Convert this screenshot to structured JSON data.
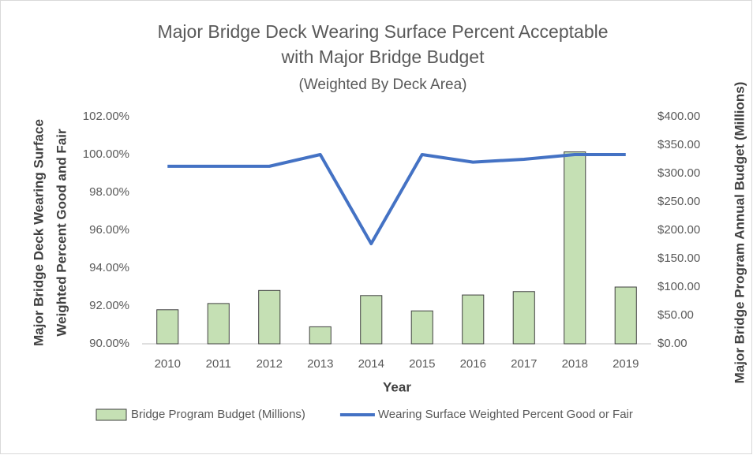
{
  "chart_data": {
    "type": "bar",
    "title": [
      "Major Bridge Deck Wearing Surface Percent Acceptable",
      "with Major Bridge Budget"
    ],
    "subtitle": "(Weighted By Deck Area)",
    "xlabel": "Year",
    "ylabel": [
      "Major Bridge Deck Wearing Surface",
      "Weighted Percent Good and Fair"
    ],
    "y2label": "Major Bridge Program Annual Budget (Millions)",
    "categories": [
      "2010",
      "2011",
      "2012",
      "2013",
      "2014",
      "2015",
      "2016",
      "2017",
      "2018",
      "2019"
    ],
    "series": [
      {
        "name": "Bridge Program Budget (Millions)",
        "type": "bar",
        "axis": "y2",
        "color": "#c5e0b4",
        "values": [
          60,
          71,
          94,
          30,
          85,
          58,
          86,
          92,
          338,
          100
        ]
      },
      {
        "name": "Wearing Surface Weighted Percent Good or Fair",
        "type": "line",
        "axis": "y",
        "color": "#4472c4",
        "values": [
          99.38,
          99.38,
          99.38,
          100.0,
          95.29,
          100.0,
          99.6,
          99.75,
          100.0,
          100.0
        ]
      }
    ],
    "ylim": [
      90,
      102
    ],
    "yticks": [
      {
        "value": 90,
        "label": "90.00%"
      },
      {
        "value": 92,
        "label": "92.00%"
      },
      {
        "value": 94,
        "label": "94.00%"
      },
      {
        "value": 96,
        "label": "96.00%"
      },
      {
        "value": 98,
        "label": "98.00%"
      },
      {
        "value": 100,
        "label": "100.00%"
      },
      {
        "value": 102,
        "label": "102.00%"
      }
    ],
    "y2lim": [
      0,
      400
    ],
    "y2ticks": [
      {
        "value": 0,
        "label": "$0.00"
      },
      {
        "value": 50,
        "label": "$50.00"
      },
      {
        "value": 100,
        "label": "$100.00"
      },
      {
        "value": 150,
        "label": "$150.00"
      },
      {
        "value": 200,
        "label": "$200.00"
      },
      {
        "value": 250,
        "label": "$250.00"
      },
      {
        "value": 300,
        "label": "$300.00"
      },
      {
        "value": 350,
        "label": "$350.00"
      },
      {
        "value": 400,
        "label": "$400.00"
      }
    ],
    "grid": false,
    "legend": "bottom"
  }
}
